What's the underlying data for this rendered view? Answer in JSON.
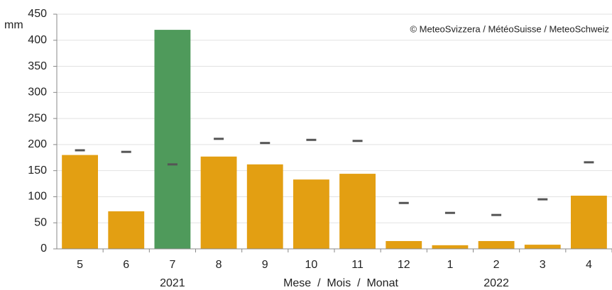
{
  "chart_data": {
    "type": "bar",
    "y_unit": "mm",
    "annotation": "© MeteoSvizzera / MétéoSuisse / MeteoSchweiz",
    "x_label": "Mese  /  Mois  /  Monat",
    "categories": [
      "5",
      "6",
      "7",
      "8",
      "9",
      "10",
      "11",
      "12",
      "1",
      "2",
      "3",
      "4"
    ],
    "year_labels": [
      null,
      null,
      "2021",
      null,
      null,
      null,
      null,
      null,
      null,
      "2022",
      null,
      null
    ],
    "series": [
      {
        "values": [
          180,
          72,
          420,
          177,
          162,
          133,
          144,
          15,
          7,
          15,
          8,
          102
        ],
        "colors": [
          "#e39f12",
          "#e39f12",
          "#4f9a5b",
          "#e39f12",
          "#e39f12",
          "#e39f12",
          "#e39f12",
          "#e39f12",
          "#e39f12",
          "#e39f12",
          "#e39f12",
          "#e39f12"
        ]
      },
      {
        "values": [
          189,
          186,
          162,
          211,
          203,
          209,
          207,
          88,
          69,
          65,
          95,
          166
        ],
        "color": "#555555",
        "marker": "dash"
      }
    ],
    "ylim": [
      0,
      450
    ],
    "yticks": [
      0,
      50,
      100,
      150,
      200,
      250,
      300,
      350,
      400,
      450
    ],
    "grid": true
  }
}
